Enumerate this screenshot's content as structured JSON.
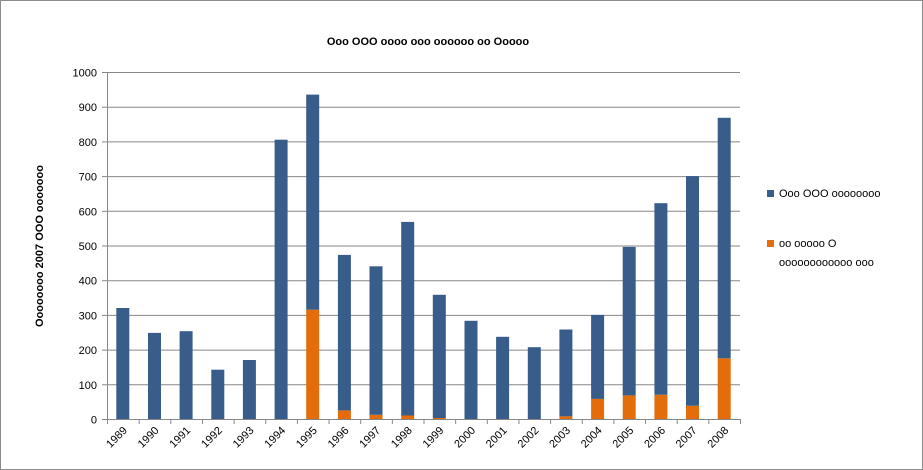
{
  "chart_data": {
    "type": "bar",
    "stacked": true,
    "title": "Ooo OOO oooo ooo oooooo oo Ooooo",
    "xlabel": "",
    "ylabel": "Oooooooo 2007 OOO ooooooo",
    "ylim": [
      0,
      1000
    ],
    "yticks": [
      0,
      100,
      200,
      300,
      400,
      500,
      600,
      700,
      800,
      900,
      1000
    ],
    "grid": true,
    "legend_position": "right",
    "categories": [
      "1989",
      "1990",
      "1991",
      "1992",
      "1993",
      "1994",
      "1995",
      "1996",
      "1997",
      "1998",
      "1999",
      "2000",
      "2001",
      "2002",
      "2003",
      "2004",
      "2005",
      "2006",
      "2007",
      "2008"
    ],
    "series": [
      {
        "name": "oo ooooo O oooooooooooo ooo",
        "color": "#E46C0A",
        "values": [
          0,
          0,
          0,
          0,
          0,
          0,
          315,
          25,
          12,
          10,
          3,
          0,
          0,
          0,
          8,
          58,
          68,
          70,
          38,
          175
        ]
      },
      {
        "name": "Ooo OOO oooooooo",
        "color": "#385D8A",
        "values": [
          320,
          248,
          253,
          142,
          170,
          805,
          620,
          448,
          428,
          558,
          355,
          283,
          237,
          207,
          250,
          242,
          428,
          552,
          662,
          693
        ]
      }
    ],
    "legend": [
      {
        "label": "Ooo OOO oooooooo",
        "color": "#385D8A"
      },
      {
        "label_lines": [
          "oo ooooo O",
          "oooooooooooo ooo"
        ],
        "color": "#E46C0A"
      }
    ]
  }
}
